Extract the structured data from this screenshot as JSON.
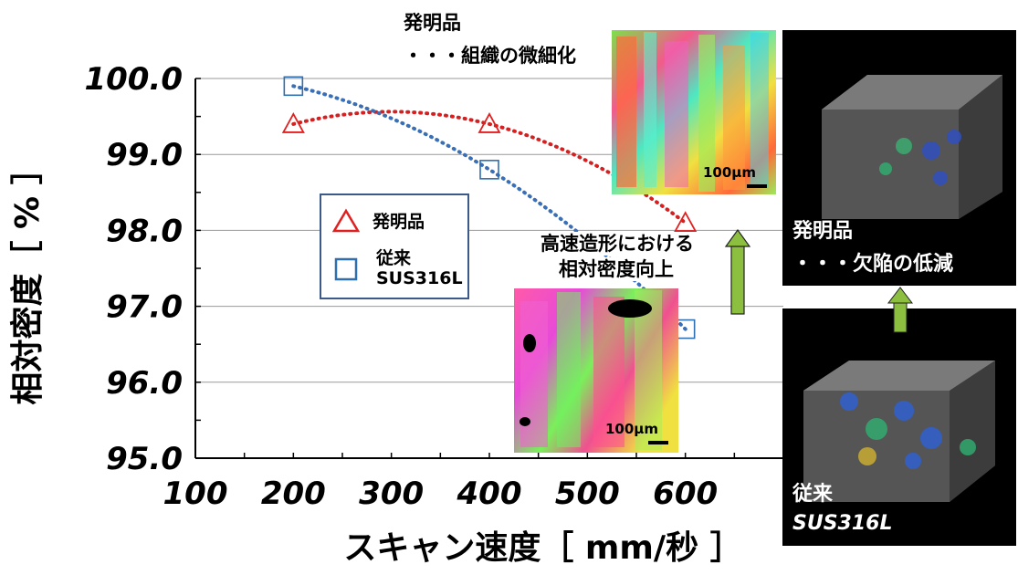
{
  "chart_data": {
    "type": "scatter",
    "x": [
      200,
      400,
      600
    ],
    "series": [
      {
        "name": "発明品",
        "marker": "triangle",
        "color": "#e02020",
        "trend_color": "#d42020",
        "values": [
          99.4,
          99.4,
          98.1
        ]
      },
      {
        "name": "従来\nSUS316L",
        "marker": "square",
        "color": "#2e6fb0",
        "trend_color": "#3a6fb5",
        "values": [
          99.9,
          98.8,
          96.7
        ]
      }
    ],
    "x_ticks": [
      "100",
      "200",
      "300",
      "400",
      "500",
      "600"
    ],
    "y_ticks": [
      "95.0",
      "96.0",
      "97.0",
      "98.0",
      "99.0",
      "100.0"
    ],
    "xlim": [
      100,
      700
    ],
    "ylim": [
      95.0,
      100.0
    ],
    "xlabel": "スキャン速度［ mm/秒 ］",
    "ylabel": "相対密度［ % ］",
    "grid": "horizontal",
    "legend_position": "center-left",
    "trendline": "dotted polynomial"
  },
  "legend": {
    "invention": "発明品",
    "conventional_line1": "従来",
    "conventional_line2": "SUS316L"
  },
  "annotations": {
    "invention_title": "発明品",
    "invention_detail": "・・・組織の微細化",
    "improvement_line1": "高速造形における",
    "improvement_line2": "相対密度向上",
    "scale_top": "100μm",
    "scale_bottom": "100μm",
    "defect_title": "発明品",
    "defect_detail": "・・・欠陥の低減",
    "conventional_line1": "従来",
    "conventional_line2": "SUS316L"
  },
  "colors": {
    "arrow_green": "#8cbf3f",
    "grid": "#999999"
  }
}
